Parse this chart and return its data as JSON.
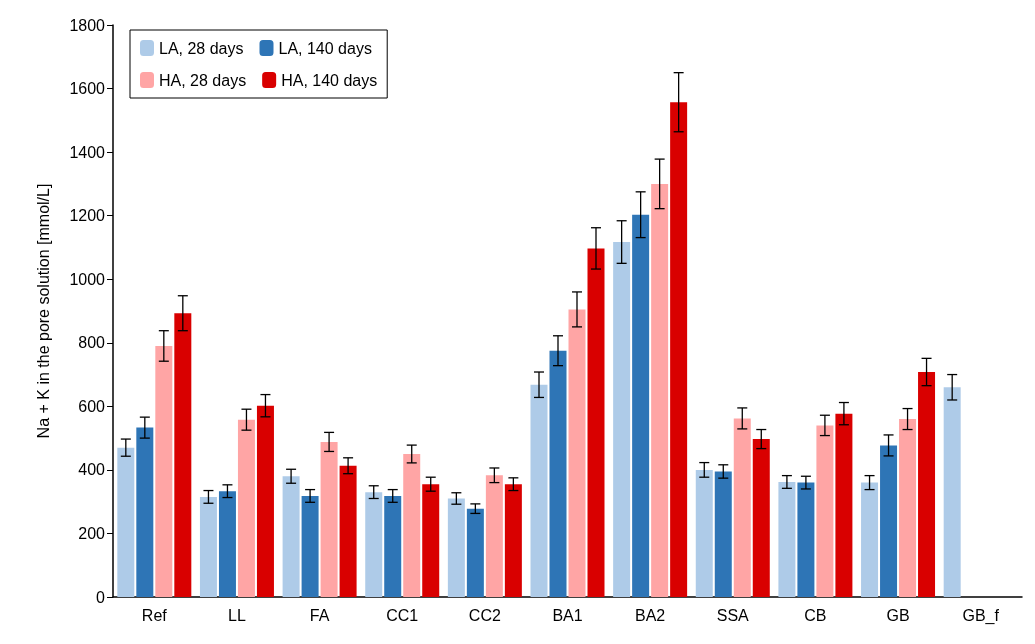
{
  "chart_data": {
    "type": "bar",
    "ylabel": "Na + K in the pore solution [mmol/L]",
    "categories": [
      "Ref",
      "LL",
      "FA",
      "CC1",
      "CC2",
      "BA1",
      "BA2",
      "SSA",
      "CB",
      "GB",
      "GB_f"
    ],
    "ylim": [
      0,
      1800
    ],
    "yticks": [
      0,
      200,
      400,
      600,
      800,
      1000,
      1200,
      1400,
      1600,
      1800
    ],
    "grid": false,
    "legend": "top left",
    "series": [
      {
        "name": "LA, 28 days",
        "color": "#aecbe8",
        "values": [
          470,
          315,
          380,
          330,
          310,
          668,
          1117,
          400,
          362,
          360,
          660
        ],
        "errors": [
          27,
          20,
          22,
          20,
          18,
          40,
          67,
          23,
          20,
          22,
          40
        ]
      },
      {
        "name": "LA, 140 days",
        "color": "#2e75b6",
        "values": [
          533,
          333,
          318,
          318,
          278,
          775,
          1203,
          395,
          360,
          477,
          null
        ],
        "errors": [
          33,
          20,
          20,
          20,
          15,
          47,
          72,
          21,
          20,
          33,
          null
        ]
      },
      {
        "name": "HA, 28 days",
        "color": "#ffa5a5",
        "values": [
          790,
          558,
          488,
          450,
          383,
          905,
          1300,
          562,
          540,
          560,
          null
        ],
        "errors": [
          48,
          33,
          30,
          28,
          23,
          55,
          78,
          33,
          32,
          33,
          null
        ]
      },
      {
        "name": "HA, 140 days",
        "color": "#d90000",
        "values": [
          893,
          602,
          413,
          355,
          355,
          1097,
          1557,
          497,
          577,
          708,
          null
        ],
        "errors": [
          55,
          35,
          25,
          22,
          20,
          65,
          93,
          30,
          35,
          43,
          null
        ]
      }
    ]
  }
}
